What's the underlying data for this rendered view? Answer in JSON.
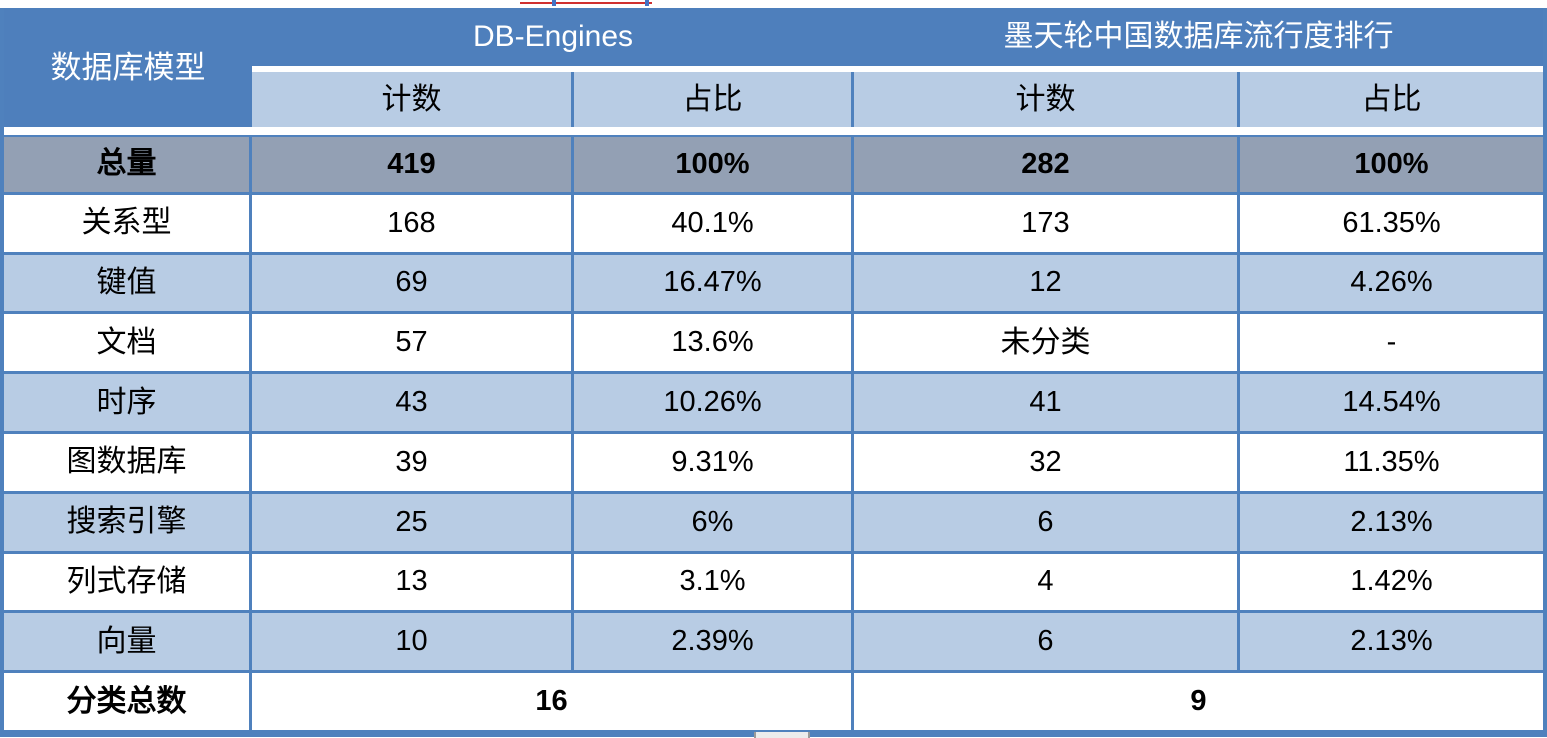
{
  "colors": {
    "header_blue": "#4e7fbc",
    "subheader_light_blue": "#b8cce4",
    "total_row_gray": "#93a0b4",
    "grid_border_blue": "#4f81bd",
    "header_text": "#ffffff",
    "body_text": "#000000",
    "artifact_red": "#d03030"
  },
  "table": {
    "corner": "数据库模型",
    "groups": [
      {
        "title": "DB-Engines",
        "columns": [
          "计数",
          "占比"
        ]
      },
      {
        "title": "墨天轮中国数据库流行度排行",
        "columns": [
          "计数",
          "占比"
        ]
      }
    ],
    "rows": [
      {
        "label": "总量",
        "values": [
          "419",
          "100%",
          "282",
          "100%"
        ]
      },
      {
        "label": "关系型",
        "values": [
          "168",
          "40.1%",
          "173",
          "61.35%"
        ]
      },
      {
        "label": "键值",
        "values": [
          "69",
          "16.47%",
          "12",
          "4.26%"
        ]
      },
      {
        "label": "文档",
        "values": [
          "57",
          "13.6%",
          "未分类",
          "-"
        ]
      },
      {
        "label": "时序",
        "values": [
          "43",
          "10.26%",
          "41",
          "14.54%"
        ]
      },
      {
        "label": "图数据库",
        "values": [
          "39",
          "9.31%",
          "32",
          "11.35%"
        ]
      },
      {
        "label": "搜索引擎",
        "values": [
          "25",
          "6%",
          "6",
          "2.13%"
        ]
      },
      {
        "label": "列式存储",
        "values": [
          "13",
          "3.1%",
          "4",
          "1.42%"
        ]
      },
      {
        "label": "向量",
        "values": [
          "10",
          "2.39%",
          "6",
          "2.13%"
        ]
      }
    ],
    "footer": {
      "label": "分类总数",
      "db_engines_total": "16",
      "modb_total": "9"
    }
  }
}
